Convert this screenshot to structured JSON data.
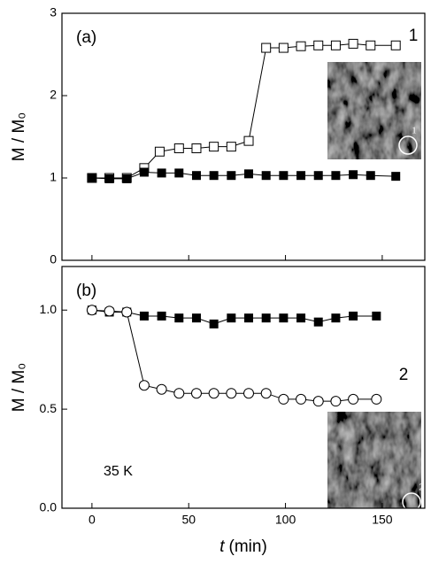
{
  "chart_data": [
    {
      "type": "line",
      "panel_label": "(a)",
      "curve_label": "1",
      "inset_label": "1",
      "y_label": "M / M₀",
      "xlim": [
        -15.5,
        172
      ],
      "xticks": [
        0,
        50,
        100,
        150
      ],
      "ylim": [
        0,
        3
      ],
      "yticks": [
        0,
        1,
        2,
        3
      ],
      "series": [
        {
          "marker": "square-open",
          "color": "#000000",
          "x": [
            0,
            9,
            18,
            27,
            35,
            45,
            54,
            63,
            72,
            81,
            90,
            99,
            108,
            117,
            126,
            135,
            144,
            157
          ],
          "values": [
            1.0,
            1.0,
            1.0,
            1.12,
            1.32,
            1.36,
            1.36,
            1.38,
            1.38,
            1.45,
            2.58,
            2.58,
            2.6,
            2.61,
            2.61,
            2.63,
            2.61,
            2.61
          ]
        },
        {
          "marker": "square-filled",
          "color": "#000000",
          "x": [
            0,
            9,
            18,
            27,
            36,
            45,
            54,
            63,
            72,
            81,
            90,
            99,
            108,
            117,
            126,
            135,
            144,
            157
          ],
          "values": [
            1.0,
            0.99,
            0.99,
            1.07,
            1.06,
            1.06,
            1.03,
            1.03,
            1.03,
            1.05,
            1.03,
            1.03,
            1.03,
            1.03,
            1.03,
            1.04,
            1.03,
            1.02
          ]
        }
      ]
    },
    {
      "type": "line",
      "panel_label": "(b)",
      "curve_label": "2",
      "inset_label": "2",
      "annotation": "35 K",
      "y_label": "M / M₀",
      "x_label_var": "t",
      "x_label_unit": "(min)",
      "xlim": [
        -15.5,
        172
      ],
      "xticks": [
        0,
        50,
        100,
        150
      ],
      "ylim": [
        0,
        1.22
      ],
      "yticks": [
        {
          "value": 0,
          "label": "0.0"
        },
        {
          "value": 0.5,
          "label": "0.5"
        },
        {
          "value": 1,
          "label": "1.0"
        }
      ],
      "series": [
        {
          "marker": "square-filled",
          "color": "#000000",
          "x": [
            0,
            9,
            18,
            27,
            36,
            45,
            54,
            63,
            72,
            81,
            90,
            99,
            108,
            117,
            126,
            135,
            147
          ],
          "values": [
            1.0,
            0.99,
            0.99,
            0.97,
            0.97,
            0.96,
            0.96,
            0.93,
            0.96,
            0.96,
            0.96,
            0.96,
            0.96,
            0.94,
            0.96,
            0.97,
            0.97
          ]
        },
        {
          "marker": "circle-open",
          "color": "#000000",
          "x": [
            0,
            9,
            18,
            27,
            36,
            45,
            54,
            63,
            72,
            81,
            90,
            99,
            108,
            117,
            126,
            135,
            147
          ],
          "values": [
            1.0,
            0.995,
            0.99,
            0.62,
            0.6,
            0.58,
            0.58,
            0.58,
            0.58,
            0.58,
            0.58,
            0.55,
            0.55,
            0.54,
            0.54,
            0.55,
            0.55
          ]
        }
      ]
    }
  ]
}
